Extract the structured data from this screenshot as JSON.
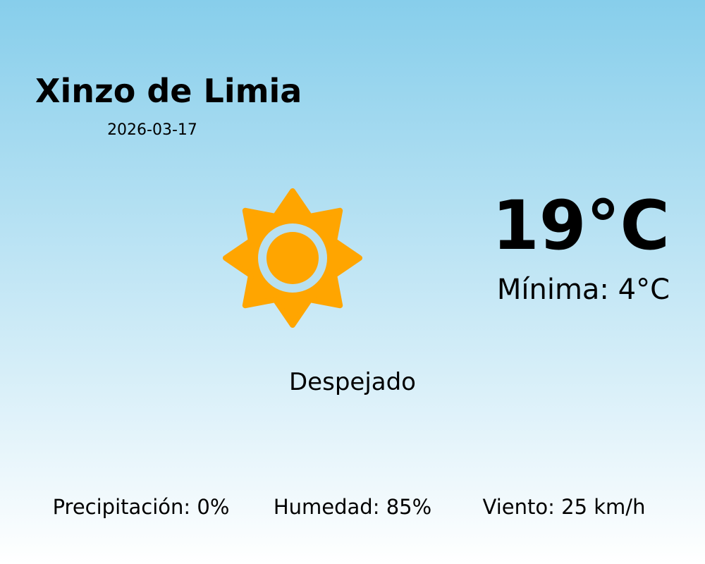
{
  "location": {
    "city": "Xinzo de Limia",
    "date": "2026-03-17"
  },
  "current": {
    "temperature": "19°C",
    "minimum": "Mínima: 4°C",
    "condition": "Despejado",
    "icon": "sun-icon"
  },
  "details": [
    {
      "label": "Precipitación: 0%"
    },
    {
      "label": "Humedad: 85%"
    },
    {
      "label": "Viento: 25 km/h"
    }
  ],
  "colors": {
    "sky_top": "#87CEEB",
    "sky_bottom": "#FFFFFF",
    "sun": "#FFA500",
    "sun_ring": "#B8E0F0"
  }
}
